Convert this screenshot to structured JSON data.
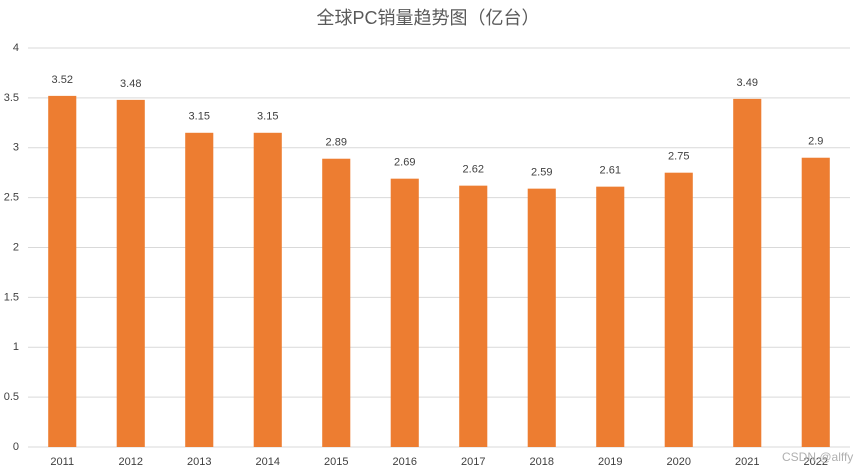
{
  "chart_data": {
    "type": "bar",
    "title": "全球PC销量趋势图（亿台）",
    "categories": [
      "2011",
      "2012",
      "2013",
      "2014",
      "2015",
      "2016",
      "2017",
      "2018",
      "2019",
      "2020",
      "2021",
      "2022"
    ],
    "values": [
      3.52,
      3.48,
      3.15,
      3.15,
      2.89,
      2.69,
      2.62,
      2.59,
      2.61,
      2.75,
      3.49,
      2.9
    ],
    "color": "#ed7d31",
    "ylim": [
      0,
      4
    ],
    "yticks": [
      0,
      0.5,
      1,
      1.5,
      2,
      2.5,
      3,
      3.5,
      4
    ],
    "grid": true,
    "watermark": "CSDN @alffy"
  }
}
